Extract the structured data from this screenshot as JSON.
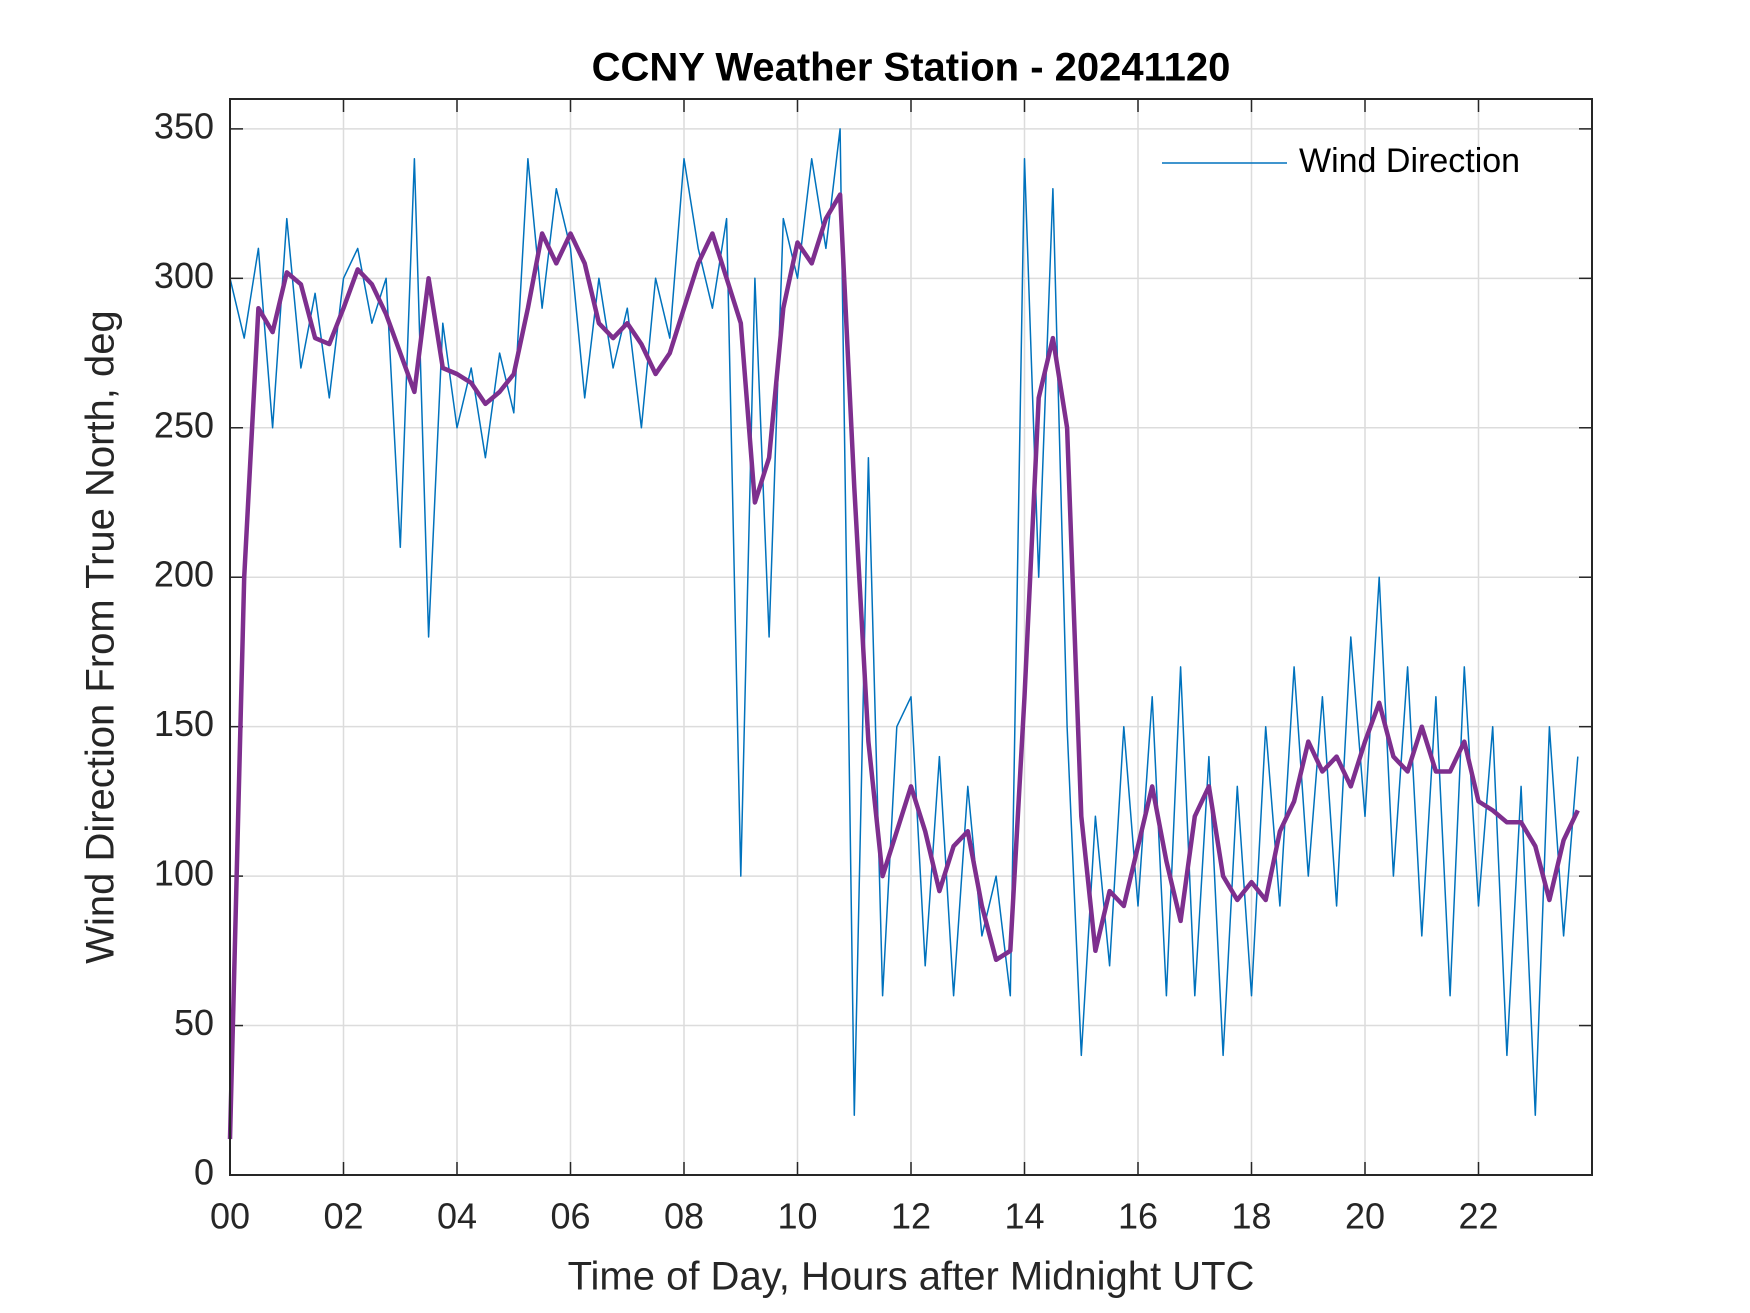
{
  "chart_data": {
    "type": "line",
    "title": "CCNY Weather Station - 20241120",
    "xlabel": "Time of Day, Hours after Midnight UTC",
    "ylabel": "Wind Direction From True North, deg",
    "x": [
      0,
      0.25,
      0.5,
      0.75,
      1,
      1.25,
      1.5,
      1.75,
      2,
      2.25,
      2.5,
      2.75,
      3,
      3.25,
      3.5,
      3.75,
      4,
      4.25,
      4.5,
      4.75,
      5,
      5.25,
      5.5,
      5.75,
      6,
      6.25,
      6.5,
      6.75,
      7,
      7.25,
      7.5,
      7.75,
      8,
      8.25,
      8.5,
      8.75,
      9,
      9.25,
      9.5,
      9.75,
      10,
      10.25,
      10.5,
      10.75,
      11,
      11.25,
      11.5,
      11.75,
      12,
      12.25,
      12.5,
      12.75,
      13,
      13.25,
      13.5,
      13.75,
      14,
      14.25,
      14.5,
      14.75,
      15,
      15.25,
      15.5,
      15.75,
      16,
      16.25,
      16.5,
      16.75,
      17,
      17.25,
      17.5,
      17.75,
      18,
      18.25,
      18.5,
      18.75,
      19,
      19.25,
      19.5,
      19.75,
      20,
      20.25,
      20.5,
      20.75,
      21,
      21.25,
      21.5,
      21.75,
      22,
      22.25,
      22.5,
      22.75,
      23,
      23.25,
      23.5,
      23.75
    ],
    "series": [
      {
        "name": "Wind Direction",
        "color": "#0072bd",
        "width": 1.5,
        "values": [
          300,
          280,
          310,
          250,
          320,
          270,
          295,
          260,
          300,
          310,
          285,
          300,
          210,
          340,
          180,
          285,
          250,
          270,
          240,
          275,
          255,
          340,
          290,
          330,
          310,
          260,
          300,
          270,
          290,
          250,
          300,
          280,
          340,
          310,
          290,
          320,
          100,
          300,
          180,
          320,
          300,
          340,
          310,
          350,
          20,
          240,
          60,
          150,
          160,
          70,
          140,
          60,
          130,
          80,
          100,
          60,
          340,
          200,
          330,
          150,
          40,
          120,
          70,
          150,
          90,
          160,
          60,
          170,
          60,
          140,
          40,
          130,
          60,
          150,
          90,
          170,
          100,
          160,
          90,
          180,
          120,
          200,
          100,
          170,
          80,
          160,
          60,
          170,
          90,
          150,
          40,
          130,
          20,
          150,
          80,
          140
        ]
      },
      {
        "color": "#7e2f8e",
        "width": 4.5,
        "values": [
          12,
          200,
          290,
          282,
          302,
          298,
          280,
          278,
          290,
          303,
          298,
          288,
          275,
          262,
          300,
          270,
          268,
          265,
          258,
          262,
          268,
          290,
          315,
          305,
          315,
          305,
          285,
          280,
          285,
          278,
          268,
          275,
          290,
          305,
          315,
          300,
          285,
          225,
          240,
          290,
          312,
          305,
          320,
          328,
          230,
          145,
          100,
          115,
          130,
          115,
          95,
          110,
          115,
          90,
          72,
          75,
          160,
          260,
          280,
          250,
          120,
          75,
          95,
          90,
          110,
          130,
          105,
          85,
          120,
          130,
          100,
          92,
          98,
          92,
          115,
          125,
          145,
          135,
          140,
          130,
          145,
          158,
          140,
          135,
          150,
          135,
          135,
          145,
          125,
          122,
          118,
          118,
          110,
          92,
          112,
          122
        ]
      }
    ],
    "xlim": [
      0,
      24
    ],
    "xticks": [
      {
        "value": 0,
        "label": "00"
      },
      {
        "value": 2,
        "label": "02"
      },
      {
        "value": 4,
        "label": "04"
      },
      {
        "value": 6,
        "label": "06"
      },
      {
        "value": 8,
        "label": "08"
      },
      {
        "value": 10,
        "label": "10"
      },
      {
        "value": 12,
        "label": "12"
      },
      {
        "value": 14,
        "label": "14"
      },
      {
        "value": 16,
        "label": "16"
      },
      {
        "value": 18,
        "label": "18"
      },
      {
        "value": 20,
        "label": "20"
      },
      {
        "value": 22,
        "label": "22"
      }
    ],
    "ylim": [
      0,
      360
    ],
    "yticks": [
      0,
      50,
      100,
      150,
      200,
      250,
      300,
      350
    ],
    "grid": true,
    "legend": "upper right"
  }
}
